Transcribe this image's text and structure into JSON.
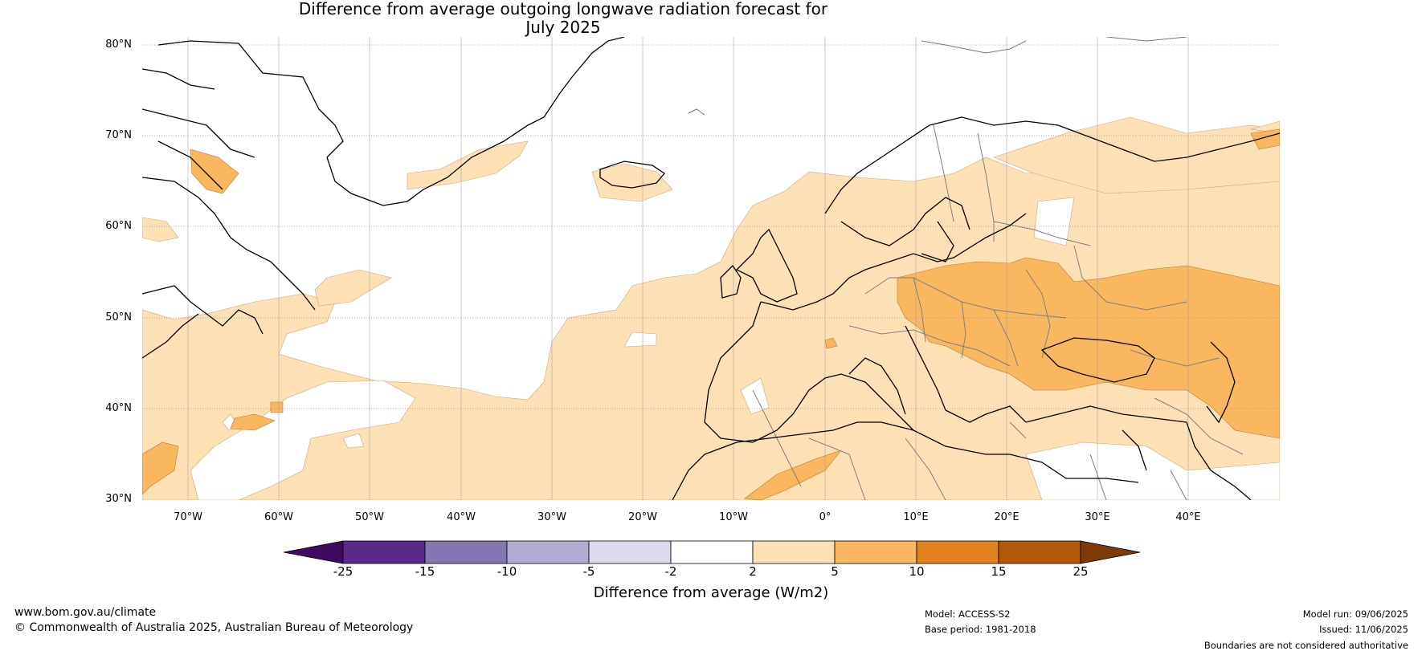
{
  "title": {
    "line1": "Difference from average outgoing longwave radiation forecast for",
    "line2": "July 2025"
  },
  "map": {
    "lat_labels": [
      "80°N",
      "70°N",
      "60°N",
      "50°N",
      "40°N",
      "30°N"
    ],
    "lon_labels": [
      "70°W",
      "60°W",
      "50°W",
      "40°W",
      "30°W",
      "20°W",
      "10°W",
      "0°",
      "10°E",
      "20°E",
      "30°E",
      "40°E"
    ],
    "lat_range": [
      30,
      81
    ],
    "lon_range": [
      -75,
      50
    ],
    "colors": {
      "anom_2_5": "#fde0b4",
      "anom_5_10": "#fbb660",
      "coast": "#000000",
      "borders": "#808080",
      "grid": "#999999"
    }
  },
  "colorbar": {
    "ticks": [
      "-25",
      "-15",
      "-10",
      "-5",
      "-2",
      "2",
      "5",
      "10",
      "15",
      "25"
    ],
    "colors": [
      "#3f0a60",
      "#5a2a8a",
      "#8376b1",
      "#b3abd4",
      "#dcdbed",
      "#ffffff",
      "#fde0b4",
      "#fbb660",
      "#e1811c",
      "#b15906",
      "#7e3a07"
    ],
    "label": "Difference from average (W/m2)"
  },
  "footer": {
    "url": "www.bom.gov.au/climate",
    "copyright": "© Commonwealth of Australia 2025, Australian Bureau of Meteorology",
    "model": "Model: ACCESS-S2",
    "base_period": "Base period: 1981-2018",
    "model_run": "Model run: 09/06/2025",
    "issued": "Issued: 11/06/2025",
    "disclaimer": "Boundaries are not considered authoritative"
  }
}
